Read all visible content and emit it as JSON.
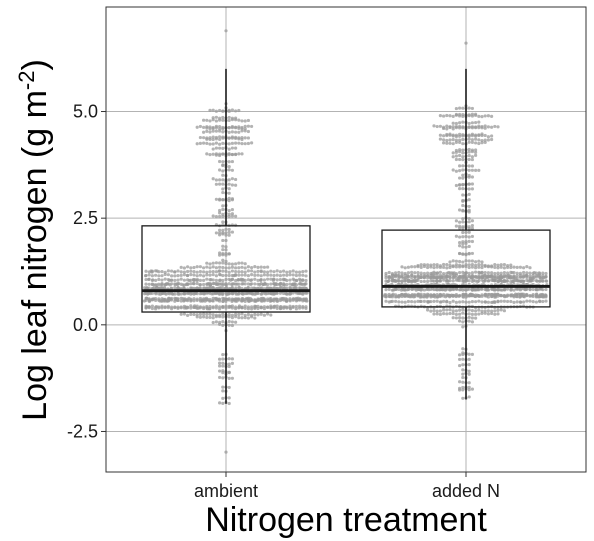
{
  "chart_data": {
    "type": "boxplot",
    "title": "",
    "xlabel": "Nitrogen treatment",
    "ylabel": {
      "main": "Log leaf nitrogen (g m",
      "superscript": "-2",
      "close": ")"
    },
    "categories": [
      "ambient",
      "added N"
    ],
    "ylim": [
      -3.45,
      7.45
    ],
    "yticks": [
      -2.5,
      0.0,
      2.5,
      5.0
    ],
    "ytick_labels": [
      "-2.5",
      "0.0",
      "2.5",
      "5.0"
    ],
    "grid": true,
    "boxes": [
      {
        "category": "ambient",
        "q1": 0.3,
        "median": 0.8,
        "q3": 2.32,
        "whisker_low": -1.85,
        "whisker_high": 6.0,
        "point_min": -3.0,
        "point_max": 6.9
      },
      {
        "category": "added N",
        "q1": 0.42,
        "median": 0.9,
        "q3": 2.22,
        "whisker_low": -1.75,
        "whisker_high": 6.0,
        "point_min": -1.75,
        "point_max": 6.6
      }
    ],
    "colors": {
      "points": "#9a9a9a",
      "box": "#1a1a1a",
      "grid": "#b3b3b3"
    }
  }
}
